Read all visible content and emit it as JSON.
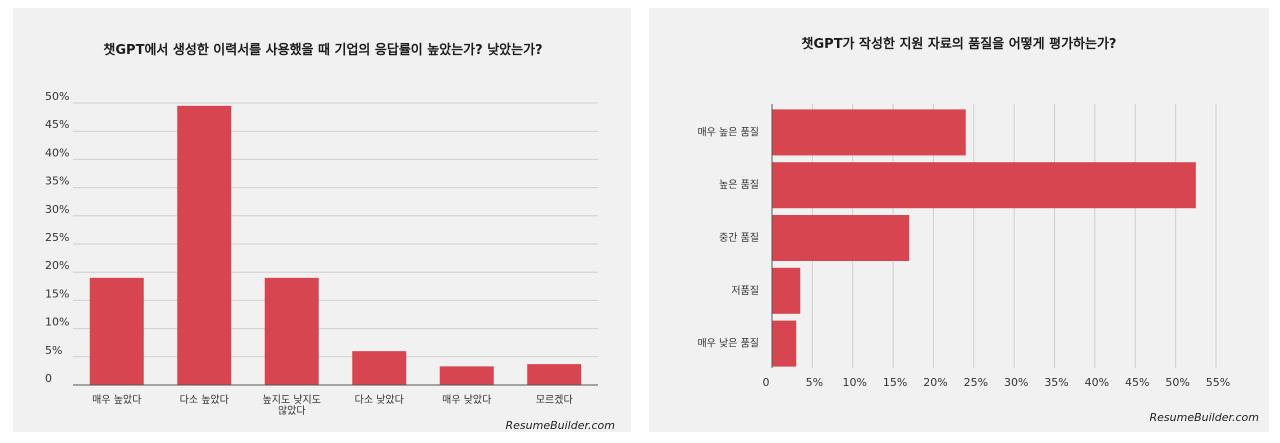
{
  "chart_data": [
    {
      "type": "bar",
      "orientation": "vertical",
      "title": "챗GPT에서 생성한 이력서를 사용했을 때 기업의 응답률이 높았는가? 낮았는가?",
      "categories": [
        [
          "매우 높았다"
        ],
        [
          "다소 높았다"
        ],
        [
          "높지도 낮지도",
          "않았다"
        ],
        [
          "다소 낮았다"
        ],
        [
          "매우 낮았다"
        ],
        [
          "모르겠다"
        ]
      ],
      "values": [
        19,
        49.5,
        19,
        6,
        3.3,
        3.7
      ],
      "yticks": [
        "0",
        "5%",
        "10%",
        "15%",
        "20%",
        "25%",
        "30%",
        "35%",
        "40%",
        "45%",
        "50%"
      ],
      "ylim": [
        0,
        50
      ],
      "grid": true,
      "source": "ResumeBuilder.com",
      "bar_color": "#d64550"
    },
    {
      "type": "bar",
      "orientation": "horizontal",
      "title": "챗GPT가 작성한 지원 자료의 품질을 어떻게 평가하는가?",
      "categories": [
        "매우 높은 품질",
        "높은 품질",
        "중간 품질",
        "저품질",
        "매우 낮은 품질"
      ],
      "values": [
        24,
        52.5,
        17,
        3.5,
        3
      ],
      "xticks": [
        "0",
        "5%",
        "10%",
        "15%",
        "20%",
        "25%",
        "30%",
        "35%",
        "40%",
        "45%",
        "50%",
        "55%"
      ],
      "xlim": [
        0,
        55
      ],
      "grid": true,
      "source": "ResumeBuilder.com",
      "bar_color": "#d64550"
    }
  ]
}
